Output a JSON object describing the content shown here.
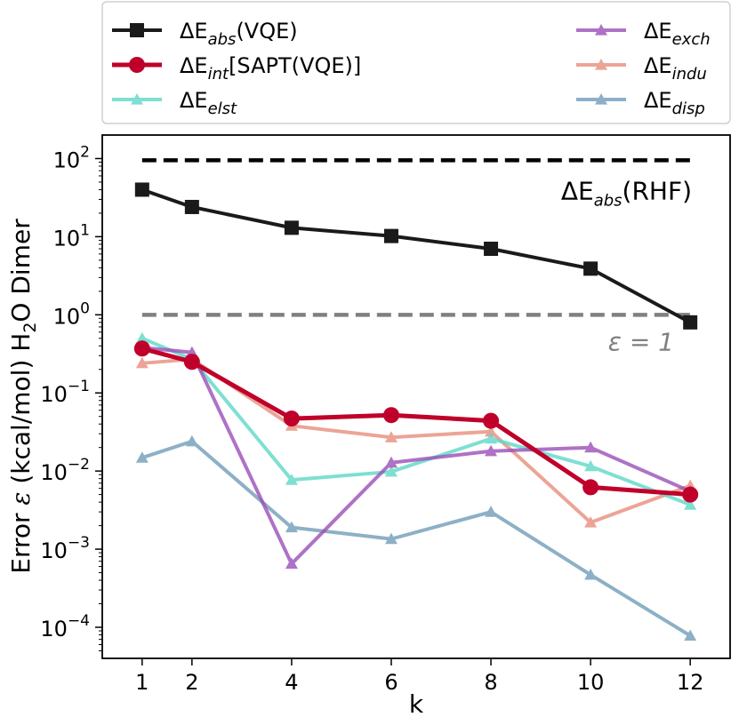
{
  "chart_data": {
    "type": "line",
    "yscale": "log",
    "xlabel": "k",
    "ylabel": "Error ε (kcal/mol) H₂O Dimer",
    "ylabel_parts": {
      "pre": "Error ",
      "eps": "ε",
      "mid": " (kcal/mol) H",
      "sub": "2",
      "post": "O Dimer"
    },
    "xlim": [
      0.2,
      12.8
    ],
    "ylim": [
      4e-05,
      200
    ],
    "x_ticks": [
      1,
      2,
      4,
      6,
      8,
      10,
      12
    ],
    "y_ticks": [
      {
        "value": 100,
        "mant": "10",
        "exp": "2"
      },
      {
        "value": 10,
        "mant": "10",
        "exp": "1"
      },
      {
        "value": 1,
        "mant": "10",
        "exp": "0"
      },
      {
        "value": 0.1,
        "mant": "10",
        "exp": "−1"
      },
      {
        "value": 0.01,
        "mant": "10",
        "exp": "−2"
      },
      {
        "value": 0.001,
        "mant": "10",
        "exp": "−3"
      },
      {
        "value": 0.0001,
        "mant": "10",
        "exp": "−4"
      }
    ],
    "x": [
      1,
      2,
      4,
      6,
      8,
      10,
      12
    ],
    "series": [
      {
        "key": "eabs_vqe",
        "base": "ΔE",
        "sub": "abs",
        "suffix": "(VQE)",
        "color": "#1a1a1a",
        "marker": "square",
        "width": 4,
        "alpha": 1.0,
        "values": [
          40,
          24,
          13,
          10.2,
          7.0,
          3.9,
          0.8
        ]
      },
      {
        "key": "eint",
        "base": "ΔE",
        "sub": "int",
        "suffix": "[SAPT(VQE)]",
        "color": "#c0002a",
        "marker": "circle",
        "width": 5,
        "alpha": 1.0,
        "values": [
          0.37,
          0.25,
          0.047,
          0.052,
          0.044,
          0.0062,
          0.005
        ]
      },
      {
        "key": "elst",
        "base": "ΔE",
        "sub": "elst",
        "suffix": "",
        "color": "#5fd8c8",
        "marker": "triangle",
        "width": 4,
        "alpha": 0.8,
        "values": [
          0.5,
          0.27,
          0.0077,
          0.0098,
          0.026,
          0.0115,
          0.0037
        ]
      },
      {
        "key": "exch",
        "base": "ΔE",
        "sub": "exch",
        "suffix": "",
        "color": "#9b4fb8",
        "marker": "triangle",
        "width": 4,
        "alpha": 0.8,
        "values": [
          0.38,
          0.33,
          0.00065,
          0.0128,
          0.018,
          0.02,
          0.0055
        ]
      },
      {
        "key": "indu",
        "base": "ΔE",
        "sub": "indu",
        "suffix": "",
        "color": "#e47e6a",
        "marker": "triangle",
        "width": 4,
        "alpha": 0.7,
        "values": [
          0.24,
          0.27,
          0.038,
          0.027,
          0.032,
          0.0022,
          0.0065
        ]
      },
      {
        "key": "disp",
        "base": "ΔE",
        "sub": "disp",
        "suffix": "",
        "color": "#5e8fae",
        "marker": "triangle",
        "width": 4,
        "alpha": 0.7,
        "values": [
          0.0148,
          0.024,
          0.0019,
          0.00135,
          0.003,
          0.00047,
          7.8e-05
        ]
      }
    ],
    "reference_lines": [
      {
        "key": "rhf",
        "y": 95,
        "color": "#000000",
        "label_base": "ΔE",
        "label_sub": "abs",
        "label_suffix": "(RHF)"
      },
      {
        "key": "eps1",
        "y": 1.0,
        "color": "#808080",
        "label_text": "ε = 1"
      }
    ],
    "legend": {
      "placement": "top",
      "columns": 2,
      "order": [
        "eabs_vqe",
        "exch",
        "eint",
        "indu",
        "elst",
        "disp"
      ]
    }
  }
}
